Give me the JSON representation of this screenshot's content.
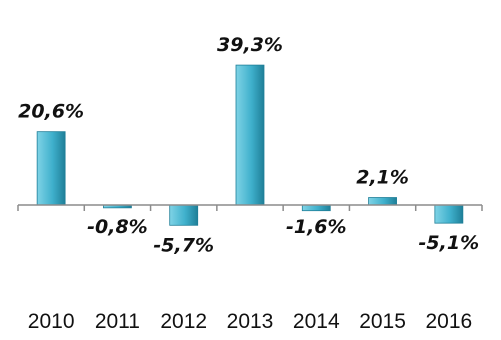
{
  "chart_data": {
    "type": "bar",
    "categories": [
      "2010",
      "2011",
      "2012",
      "2013",
      "2014",
      "2015",
      "2016"
    ],
    "values": [
      20.6,
      -0.8,
      -5.7,
      39.3,
      -1.6,
      2.1,
      -5.1
    ],
    "data_labels": [
      "20,6%",
      "-0,8%",
      "-5,7%",
      "39,3%",
      "-1,6%",
      "2,1%",
      "-5,1%"
    ],
    "title": "",
    "xlabel": "",
    "ylabel": "",
    "grid": false,
    "legend": "none",
    "colors": {
      "bar_light": "#7fd3e6",
      "bar_mid": "#3fb0cc",
      "bar_dark": "#1f7f98",
      "axis": "#8c8c8c"
    }
  }
}
